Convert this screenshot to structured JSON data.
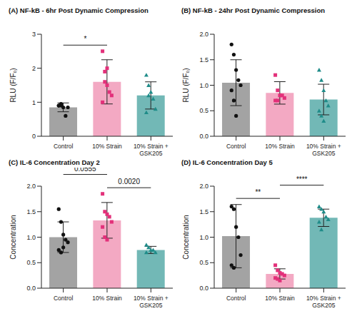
{
  "chart_data": [
    {
      "type": "bar",
      "title": "(A)  NF-kB - 6hr Post Dynamic Compression",
      "ylabel": "RLU (F/Fₒ)",
      "categories": [
        "Control",
        "10% Strain",
        "10% Strain + GSK205"
      ],
      "values": [
        0.85,
        1.6,
        1.2
      ],
      "error": [
        0.13,
        0.65,
        0.4
      ],
      "points": [
        [
          0.9,
          0.95,
          0.85,
          0.6,
          0.85,
          0.9,
          0.9
        ],
        [
          2.5,
          1.9,
          1.5,
          1.3,
          1.2,
          1.0,
          1.6,
          2.0
        ],
        [
          1.8,
          1.5,
          1.3,
          1.1,
          0.8,
          0.7,
          1.2
        ]
      ],
      "colors": [
        "#a3a3a3",
        "#f3a9c3",
        "#72b8b6"
      ],
      "ylim": [
        0,
        3
      ],
      "yticks": [
        0,
        1,
        2,
        3
      ],
      "annotations": [
        {
          "text": "*",
          "from": "Control",
          "to": "10% Strain"
        }
      ]
    },
    {
      "type": "bar",
      "title": "(B)  NF-kB - 24hr Post Dynamic Compression",
      "ylabel": "RLU (F/Fₒ)",
      "categories": [
        "Control",
        "10% Strain",
        "10% Strain + GSK205"
      ],
      "values": [
        1.05,
        0.85,
        0.72
      ],
      "error": [
        0.45,
        0.22,
        0.3
      ],
      "points": [
        [
          1.8,
          1.6,
          1.3,
          1.1,
          1.0,
          0.9,
          0.7,
          0.4
        ],
        [
          1.2,
          0.9,
          0.8,
          0.8,
          0.75,
          0.7,
          0.7
        ],
        [
          1.3,
          1.1,
          0.9,
          0.7,
          0.6,
          0.5,
          0.4,
          0.3
        ]
      ],
      "colors": [
        "#a3a3a3",
        "#f3a9c3",
        "#72b8b6"
      ],
      "ylim": [
        0,
        2
      ],
      "yticks": [
        {
          "value": 0,
          "label": "0.0"
        },
        {
          "value": 0.5,
          "label": "0.5"
        },
        {
          "value": 1,
          "label": "1.0"
        },
        {
          "value": 1.5,
          "label": "1.5"
        },
        {
          "value": 2,
          "label": "2.0"
        }
      ],
      "annotations": []
    },
    {
      "type": "bar",
      "title": "(C)  IL-6 Concentration Day 2",
      "ylabel": "Concentration",
      "categories": [
        "Control",
        "10% Strain",
        "10% Strain + GSK205"
      ],
      "values": [
        1.0,
        1.33,
        0.75
      ],
      "error": [
        0.3,
        0.35,
        0.07
      ],
      "points": [
        [
          1.55,
          1.3,
          1.05,
          0.95,
          0.9,
          0.75,
          0.7,
          0.8
        ],
        [
          1.85,
          1.5,
          1.45,
          1.4,
          1.3,
          1.2,
          1.0,
          0.95
        ],
        [
          0.85,
          0.8,
          0.75,
          0.75,
          0.7,
          0.7
        ]
      ],
      "colors": [
        "#a3a3a3",
        "#f3a9c3",
        "#72b8b6"
      ],
      "ylim": [
        0,
        2
      ],
      "yticks": [
        {
          "value": 0,
          "label": "0.0"
        },
        {
          "value": 0.5,
          "label": "0.5"
        },
        {
          "value": 1,
          "label": "1.0"
        },
        {
          "value": 1.5,
          "label": "1.5"
        },
        {
          "value": 2,
          "label": "2.0"
        }
      ],
      "annotations": [
        {
          "text": "0.0020",
          "from": "10% Strain",
          "to": "10% Strain + GSK205"
        },
        {
          "text": "0.0555",
          "from": "Control",
          "to": "10% Strain"
        }
      ]
    },
    {
      "type": "bar",
      "title": "(D)  IL-6 Concentration Day 5",
      "ylabel": "Concentration",
      "categories": [
        "Control",
        "10% Strain",
        "10% Strain + GSK205"
      ],
      "values": [
        1.02,
        0.28,
        1.38
      ],
      "error": [
        0.62,
        0.1,
        0.17
      ],
      "points": [
        [
          1.6,
          1.55,
          1.2,
          1.0,
          0.65,
          0.45,
          0.4
        ],
        [
          0.45,
          0.35,
          0.3,
          0.28,
          0.25,
          0.2,
          0.18,
          0.15
        ],
        [
          1.6,
          1.55,
          1.5,
          1.4,
          1.35,
          1.3,
          1.15
        ]
      ],
      "colors": [
        "#a3a3a3",
        "#f3a9c3",
        "#72b8b6"
      ],
      "ylim": [
        0,
        2
      ],
      "yticks": [
        {
          "value": 0,
          "label": "0.0"
        },
        {
          "value": 0.5,
          "label": "0.5"
        },
        {
          "value": 1,
          "label": "1.0"
        },
        {
          "value": 1.5,
          "label": "1.5"
        },
        {
          "value": 2,
          "label": "2.0"
        }
      ],
      "annotations": [
        {
          "text": "**",
          "from": "Control",
          "to": "10% Strain"
        },
        {
          "text": "****",
          "from": "10% Strain",
          "to": "10% Strain + GSK205"
        }
      ]
    }
  ]
}
